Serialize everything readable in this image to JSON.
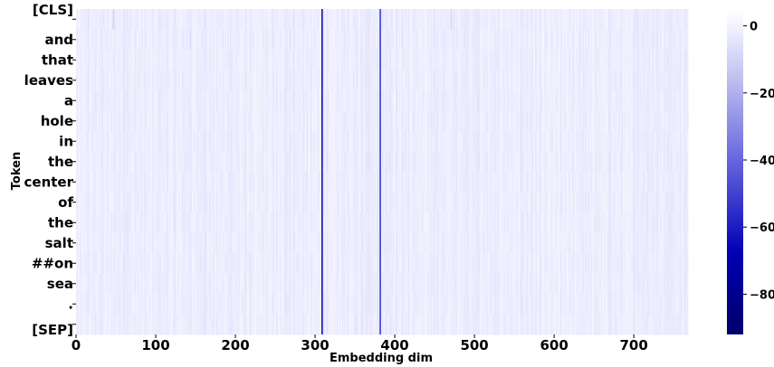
{
  "chart_data": {
    "type": "heatmap",
    "xlabel": "Embedding dim",
    "ylabel": "Token",
    "tokens": [
      "[CLS]",
      "and",
      "that",
      "leaves",
      "a",
      "hole",
      "in",
      "the",
      "center",
      "of",
      "the",
      "salt",
      "##on",
      "sea",
      ".",
      "[SEP]"
    ],
    "x_ticks": [
      0,
      100,
      200,
      300,
      400,
      500,
      600,
      700
    ],
    "xlim": [
      0,
      768
    ],
    "colorbar": {
      "ticks": [
        0,
        -20,
        -40,
        -60,
        -80
      ],
      "range": [
        -92,
        5
      ],
      "colors": [
        "#00006a",
        "#0000b4",
        "#6b6be0",
        "#c4c4f2",
        "#eeeeff",
        "#ffffff"
      ]
    },
    "highlight_dims": [
      {
        "dim": 308,
        "value": -75
      },
      {
        "dim": 381,
        "value": -55
      }
    ],
    "faint_dims": [
      {
        "dim": 46,
        "row": 0,
        "value": -12
      },
      {
        "dim": 143,
        "row": 1,
        "value": -8
      },
      {
        "dim": 470,
        "row": 0,
        "value": -10
      }
    ],
    "typical_value_range": [
      -6,
      2
    ]
  }
}
